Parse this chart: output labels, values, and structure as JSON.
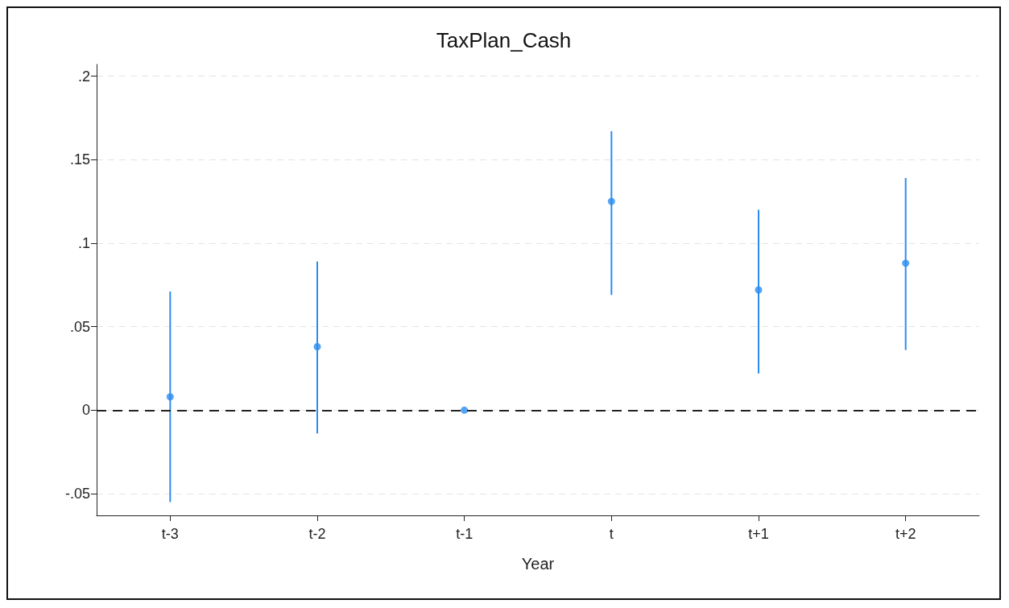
{
  "chart_data": {
    "type": "scatter",
    "title": "TaxPlan_Cash",
    "xlabel": "Year",
    "categories": [
      "t-3",
      "t-2",
      "t-1",
      "t",
      "t+1",
      "t+2"
    ],
    "series": [
      {
        "color": "#2b8cf0",
        "values": [
          0.008,
          0.038,
          0,
          0.125,
          0.072,
          0.088
        ],
        "errors": [
          [
            -0.055,
            0.071
          ],
          [
            -0.014,
            0.089
          ],
          null,
          [
            0.069,
            0.167
          ],
          [
            0.022,
            0.12
          ],
          [
            0.036,
            0.139
          ]
        ]
      }
    ],
    "ylim": [
      -0.063,
      0.207
    ],
    "yticks": [
      {
        "value": -0.05,
        "label": "-.05"
      },
      {
        "value": 0,
        "label": "0"
      },
      {
        "value": 0.05,
        "label": ".05"
      },
      {
        "value": 0.1,
        "label": ".1"
      },
      {
        "value": 0.15,
        "label": ".15"
      },
      {
        "value": 0.2,
        "label": ".2"
      }
    ],
    "grid": "y",
    "marker": "circle",
    "ref_lines": [
      {
        "axis": "y",
        "value": 0,
        "color": "#222222",
        "line_style": "dashed"
      }
    ]
  }
}
